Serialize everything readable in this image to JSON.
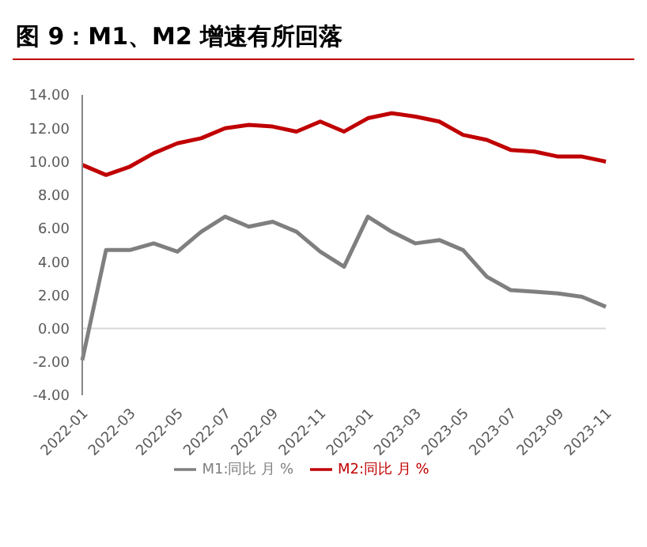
{
  "chart_data": {
    "type": "line",
    "title": "图 9：M1、M2 增速有所回落",
    "categories": [
      "2022-01",
      null,
      "2022-03",
      null,
      "2022-05",
      null,
      "2022-07",
      null,
      "2022-09",
      null,
      "2022-11",
      null,
      "2023-01",
      null,
      "2023-03",
      null,
      "2023-05",
      null,
      "2023-07",
      null,
      "2023-09",
      null,
      "2023-11"
    ],
    "series": [
      {
        "name": "M2:同比 月 %",
        "color": "#c00000",
        "values": [
          9.8,
          9.2,
          9.7,
          10.5,
          11.1,
          11.4,
          12.0,
          12.2,
          12.1,
          11.8,
          12.4,
          11.8,
          12.6,
          12.9,
          12.7,
          12.4,
          11.6,
          11.3,
          10.7,
          10.6,
          10.3,
          10.3,
          10.0
        ]
      },
      {
        "name": "M1:同比 月 %",
        "color": "#7f7f7f",
        "values": [
          -1.9,
          4.7,
          4.7,
          5.1,
          4.6,
          5.8,
          6.7,
          6.1,
          6.4,
          5.8,
          4.6,
          3.7,
          6.7,
          5.8,
          5.1,
          5.3,
          4.7,
          3.1,
          2.3,
          2.2,
          2.1,
          1.9,
          1.3
        ]
      }
    ],
    "ylim": [
      -4,
      14
    ],
    "yticks": [
      {
        "value": -4,
        "label": "-4.00"
      },
      {
        "value": -2,
        "label": "-2.00"
      },
      {
        "value": 0,
        "label": "0.00"
      },
      {
        "value": 2,
        "label": "2.00"
      },
      {
        "value": 4,
        "label": "4.00"
      },
      {
        "value": 6,
        "label": "6.00"
      },
      {
        "value": 8,
        "label": "8.00"
      },
      {
        "value": 10,
        "label": "10.00"
      },
      {
        "value": 12,
        "label": "12.00"
      },
      {
        "value": 14,
        "label": "14.00"
      }
    ],
    "ref_lines": [
      {
        "axis": "y",
        "value": 0,
        "color": "#d9d9d9"
      }
    ],
    "grid": false,
    "legend": "bottom",
    "marker": "none",
    "line_style": "solid"
  }
}
